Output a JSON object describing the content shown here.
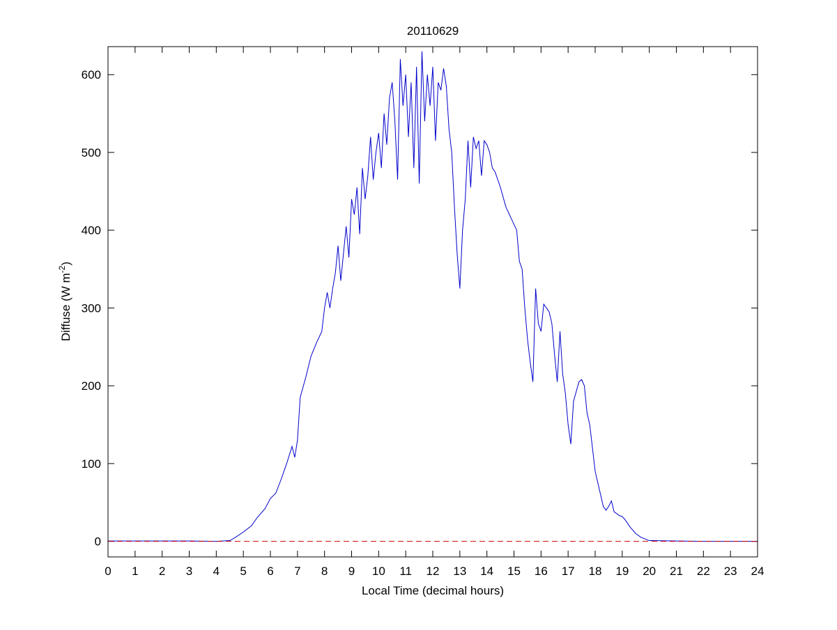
{
  "chart_data": {
    "type": "line",
    "title": "20110629",
    "xlabel": "Local Time (decimal hours)",
    "ylabel_parts": [
      "Diffuse (W m",
      "-2",
      ")"
    ],
    "xlim": [
      0,
      24
    ],
    "xticks": [
      0,
      1,
      2,
      3,
      4,
      5,
      6,
      7,
      8,
      9,
      10,
      11,
      12,
      13,
      14,
      15,
      16,
      17,
      18,
      19,
      20,
      21,
      22,
      23,
      24
    ],
    "ylim": [
      -20,
      636
    ],
    "yticks": [
      0,
      100,
      200,
      300,
      400,
      500,
      600
    ],
    "series": [
      {
        "color": "#0000cc",
        "dash": false,
        "x": [
          0,
          1,
          2,
          3,
          4,
          4.5,
          4.7,
          5.0,
          5.3,
          5.5,
          5.8,
          6.0,
          6.2,
          6.4,
          6.6,
          6.8,
          6.9,
          7.0,
          7.1,
          7.3,
          7.5,
          7.7,
          7.9,
          8.0,
          8.1,
          8.2,
          8.3,
          8.4,
          8.5,
          8.6,
          8.7,
          8.8,
          8.9,
          9.0,
          9.1,
          9.2,
          9.3,
          9.4,
          9.5,
          9.6,
          9.7,
          9.8,
          9.9,
          10.0,
          10.1,
          10.2,
          10.3,
          10.4,
          10.5,
          10.6,
          10.7,
          10.8,
          10.9,
          11.0,
          11.1,
          11.2,
          11.3,
          11.4,
          11.5,
          11.6,
          11.7,
          11.8,
          11.9,
          12.0,
          12.1,
          12.2,
          12.3,
          12.4,
          12.5,
          12.6,
          12.7,
          12.8,
          12.9,
          13.0,
          13.1,
          13.2,
          13.3,
          13.4,
          13.5,
          13.6,
          13.7,
          13.8,
          13.9,
          14.0,
          14.1,
          14.2,
          14.3,
          14.5,
          14.7,
          14.9,
          15.1,
          15.2,
          15.3,
          15.4,
          15.5,
          15.6,
          15.7,
          15.8,
          15.9,
          16.0,
          16.1,
          16.2,
          16.3,
          16.4,
          16.5,
          16.6,
          16.7,
          16.8,
          16.9,
          17.0,
          17.1,
          17.2,
          17.4,
          17.5,
          17.6,
          17.7,
          17.8,
          17.9,
          18.0,
          18.1,
          18.2,
          18.3,
          18.4,
          18.5,
          18.6,
          18.7,
          18.9,
          19.0,
          19.1,
          19.3,
          19.5,
          19.7,
          20.0,
          21,
          22,
          24
        ],
        "values": [
          0.5,
          0.5,
          0.5,
          0.5,
          0,
          1,
          5,
          12,
          20,
          30,
          42,
          55,
          62,
          80,
          100,
          122,
          108,
          130,
          185,
          210,
          238,
          255,
          270,
          300,
          320,
          300,
          325,
          345,
          380,
          335,
          370,
          405,
          365,
          440,
          420,
          455,
          395,
          480,
          440,
          470,
          520,
          465,
          500,
          525,
          480,
          550,
          510,
          570,
          590,
          540,
          465,
          620,
          560,
          600,
          520,
          590,
          480,
          610,
          460,
          630,
          540,
          600,
          560,
          610,
          515,
          590,
          580,
          608,
          585,
          530,
          500,
          430,
          370,
          325,
          400,
          440,
          515,
          455,
          520,
          505,
          515,
          470,
          515,
          510,
          500,
          480,
          475,
          455,
          430,
          415,
          400,
          360,
          350,
          300,
          260,
          230,
          205,
          325,
          280,
          270,
          305,
          300,
          295,
          280,
          240,
          205,
          270,
          215,
          190,
          150,
          125,
          180,
          205,
          208,
          200,
          165,
          150,
          120,
          90,
          75,
          60,
          45,
          40,
          45,
          52,
          38,
          33,
          32,
          28,
          18,
          10,
          5,
          1,
          0.5,
          0,
          0
        ]
      },
      {
        "color": "#cc0000",
        "dash": true,
        "x": [
          0,
          24
        ],
        "values": [
          0,
          0
        ]
      }
    ]
  }
}
